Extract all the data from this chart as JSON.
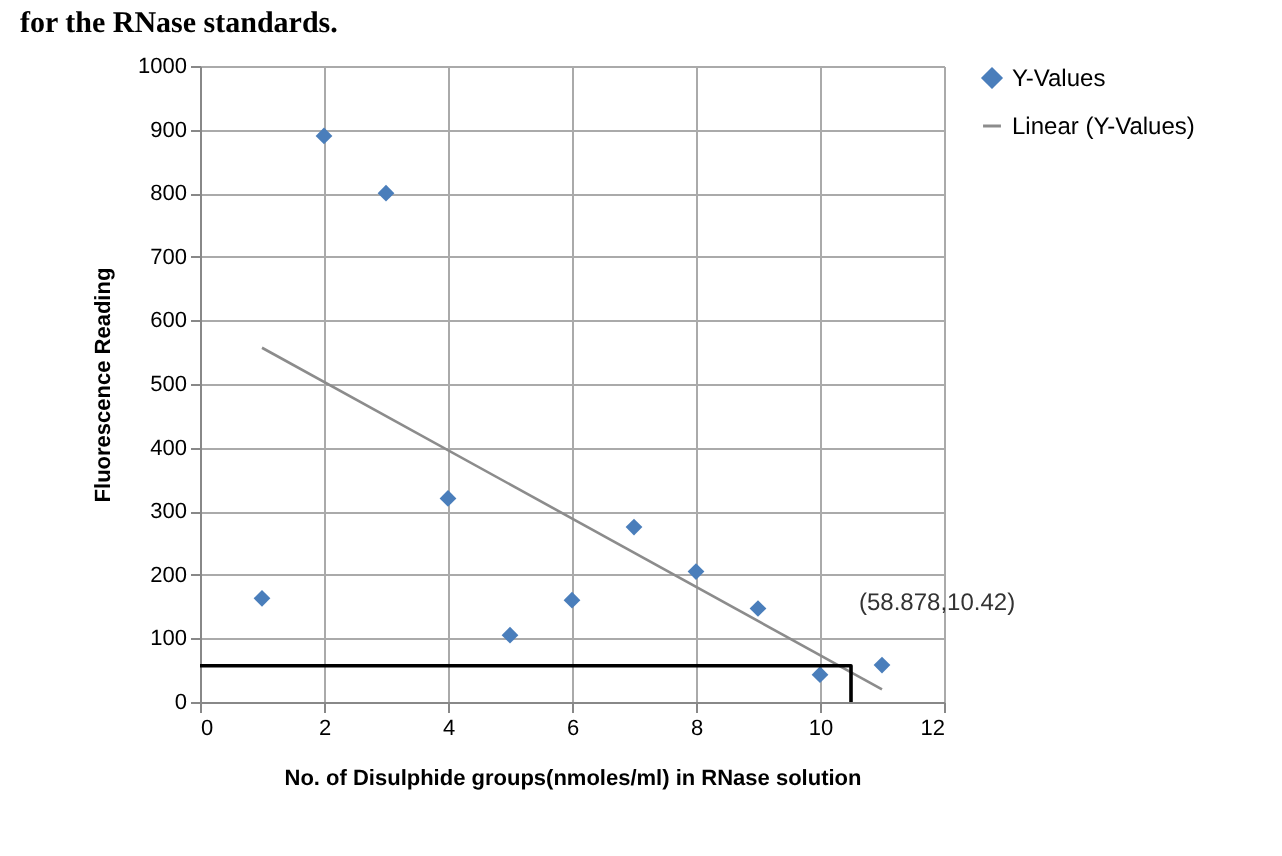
{
  "chart_data": {
    "type": "scatter",
    "title": "for the RNase standards.",
    "xlabel": "No. of Disulphide groups(nmoles/ml) in RNase solution",
    "ylabel": "Fluorescence Reading",
    "x": [
      1,
      2,
      3,
      4,
      5,
      6,
      7,
      8,
      9,
      10,
      11
    ],
    "series": [
      {
        "name": "Y-Values",
        "color": "#4a7ebb",
        "marker": "diamond",
        "values": [
          163,
          890,
          800,
          320,
          105,
          160,
          275,
          205,
          147,
          43,
          58
        ]
      },
      {
        "name": "Linear (Y-Values)",
        "type": "line",
        "color": "#8c8c8c",
        "x": [
          1,
          11
        ],
        "values": [
          557,
          20
        ]
      },
      {
        "type": "line",
        "color": "#000000",
        "x": [
          0,
          10.5,
          10.5
        ],
        "values": [
          57,
          57,
          0
        ]
      }
    ],
    "annotations": [
      {
        "text": "(58.878,10.42)",
        "x": 10.5,
        "y": 57
      }
    ],
    "xlim": [
      0,
      12
    ],
    "xticks": [
      0,
      2,
      4,
      6,
      8,
      10,
      12
    ],
    "ylim": [
      0,
      1000
    ],
    "yticks": [
      0,
      100,
      200,
      300,
      400,
      500,
      600,
      700,
      800,
      900,
      1000
    ],
    "grid": true,
    "legend": "right"
  }
}
